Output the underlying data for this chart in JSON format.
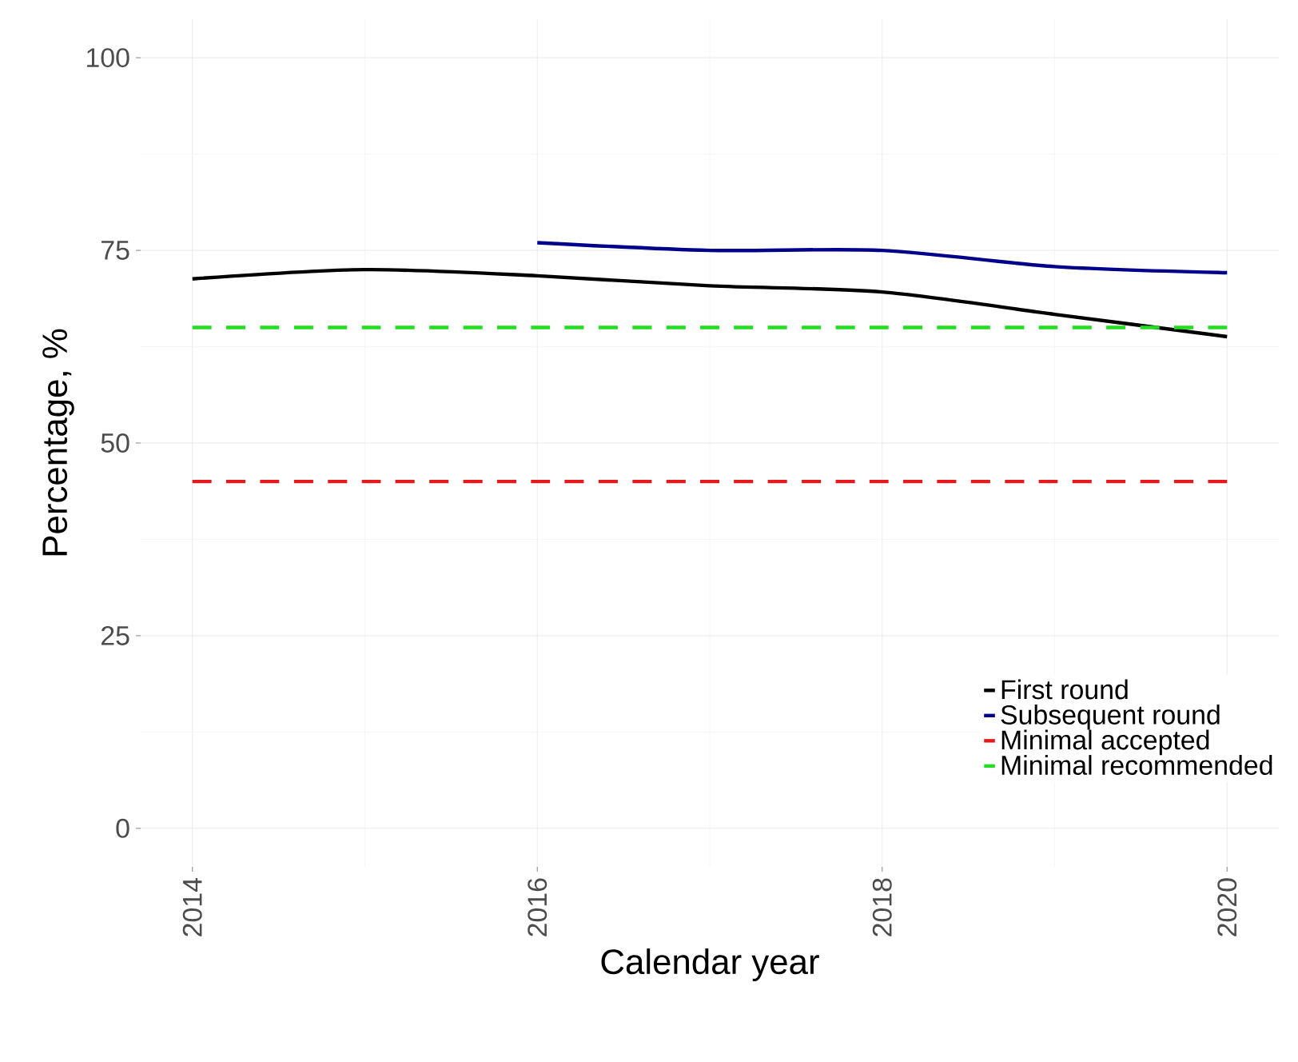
{
  "chart_data": {
    "type": "line",
    "xlabel": "Calendar year",
    "ylabel": "Percentage, %",
    "x": [
      2014,
      2015,
      2016,
      2017,
      2018,
      2019,
      2020
    ],
    "series": [
      {
        "name": "First round",
        "color": "#000000",
        "values": [
          71.3,
          72.5,
          71.7,
          70.4,
          69.6,
          66.7,
          63.8
        ]
      },
      {
        "name": "Subsequent round",
        "color": "#00008b",
        "values": [
          null,
          null,
          76.0,
          75.0,
          75.0,
          72.9,
          72.1
        ]
      },
      {
        "name": "Minimal accepted",
        "color": "#e41a1c",
        "line_style": "dashed",
        "values": [
          45,
          45,
          45,
          45,
          45,
          45,
          45
        ]
      },
      {
        "name": "Minimal recommended",
        "color": "#22dd22",
        "line_style": "dashed",
        "values": [
          65,
          65,
          65,
          65,
          65,
          65,
          65
        ]
      }
    ],
    "xlim": [
      2013.7,
      2020.3
    ],
    "ylim": [
      -5,
      105
    ],
    "xticks": [
      2014,
      2016,
      2018,
      2020
    ],
    "yticks": [
      0,
      25,
      50,
      75,
      100
    ],
    "grid": true,
    "legend": "bottom right",
    "line_style": "solid"
  }
}
